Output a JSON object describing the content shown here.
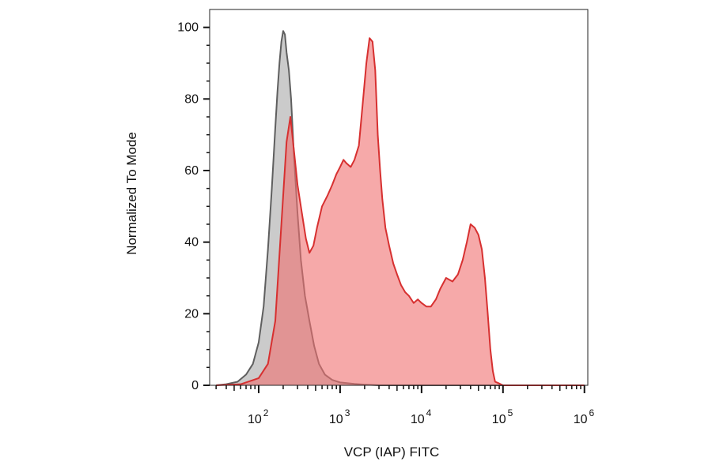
{
  "chart_data": {
    "type": "area",
    "xlabel": "VCP (IAP) FITC",
    "ylabel": "Normalized To Mode",
    "x_scale": "log",
    "xlim": [
      25,
      1100000
    ],
    "ylim": [
      0,
      105
    ],
    "y_ticks": [
      0,
      20,
      40,
      60,
      80,
      100
    ],
    "x_tick_labels": [
      {
        "value": 100,
        "base": "10",
        "exp": "2"
      },
      {
        "value": 1000,
        "base": "10",
        "exp": "3"
      },
      {
        "value": 10000,
        "base": "10",
        "exp": "4"
      },
      {
        "value": 100000,
        "base": "10",
        "exp": "5"
      },
      {
        "value": 1000000,
        "base": "10",
        "exp": "6"
      }
    ],
    "grid": false,
    "series": [
      {
        "color": "#5f5f5f",
        "fill": "#a9a9a9",
        "x": [
          30,
          40,
          55,
          70,
          85,
          100,
          115,
          130,
          145,
          160,
          170,
          180,
          190,
          200,
          210,
          220,
          235,
          250,
          270,
          300,
          330,
          370,
          420,
          480,
          550,
          650,
          800,
          1000,
          1500,
          2000,
          3000,
          5000,
          10000,
          30000,
          100000,
          300000,
          1000000
        ],
        "y": [
          0,
          0.3,
          1,
          3,
          6,
          12,
          22,
          38,
          55,
          72,
          82,
          90,
          96,
          99,
          98,
          93,
          88,
          80,
          65,
          48,
          35,
          25,
          18,
          11,
          6,
          3,
          1.5,
          0.8,
          0.4,
          0.2,
          0,
          0,
          0,
          0,
          0,
          0,
          0
        ]
      },
      {
        "color": "#d73030",
        "fill": "#f07070",
        "x": [
          30,
          60,
          100,
          130,
          160,
          190,
          220,
          245,
          270,
          300,
          340,
          380,
          420,
          470,
          520,
          600,
          700,
          800,
          900,
          1000,
          1100,
          1200,
          1350,
          1500,
          1700,
          1900,
          2100,
          2300,
          2500,
          2700,
          2900,
          3100,
          3300,
          3600,
          4000,
          4500,
          5000,
          5600,
          6300,
          7000,
          8000,
          9000,
          10000,
          11500,
          13000,
          15000,
          17000,
          20000,
          24000,
          28000,
          32000,
          36000,
          40000,
          45000,
          50000,
          55000,
          60000,
          65000,
          70000,
          75000,
          80000,
          90000,
          100000,
          115000,
          130000,
          160000,
          200000,
          300000,
          1000000
        ],
        "y": [
          0,
          0.3,
          2,
          6,
          18,
          45,
          68,
          75,
          66,
          56,
          48,
          41,
          37,
          39,
          44,
          50,
          53,
          56,
          59,
          61,
          63,
          62,
          61,
          63,
          67,
          79,
          90,
          97,
          96,
          88,
          70,
          60,
          52,
          44,
          39,
          34,
          31,
          28,
          26,
          25,
          23,
          24,
          23,
          22,
          22,
          24,
          27,
          30,
          29,
          31,
          35,
          40,
          45,
          44,
          42,
          38,
          30,
          20,
          10,
          4,
          1,
          0.5,
          0,
          0,
          0,
          0,
          0,
          0,
          0
        ]
      }
    ]
  }
}
